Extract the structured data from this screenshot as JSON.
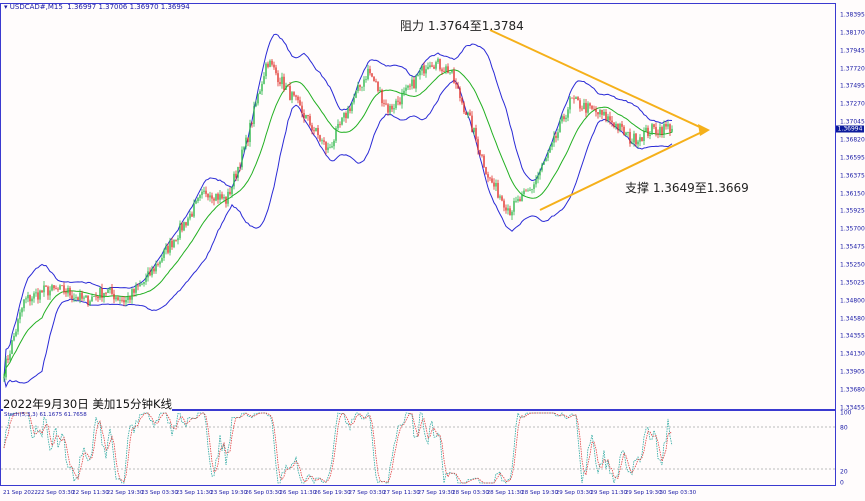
{
  "header": {
    "symbol": "USDCAD#,M15",
    "ohlc": "1.36997 1.37006 1.36970 1.36994"
  },
  "price_axis": [
    "1.38395",
    "1.38170",
    "1.37945",
    "1.37720",
    "1.37495",
    "1.37270",
    "1.37045",
    "1.36820",
    "1.36595",
    "1.36375",
    "1.36150",
    "1.35925",
    "1.35700",
    "1.35475",
    "1.35250",
    "1.35025",
    "1.34800",
    "1.34580",
    "1.34355",
    "1.34130",
    "1.33905",
    "1.33680",
    "1.33455"
  ],
  "current_price": "1.36994",
  "stoch_axis": [
    "100",
    "80",
    "20",
    "0"
  ],
  "stoch_label": "Stoch(5,3,3) 61.1675 61.7658",
  "time_axis": [
    "21 Sep 2022",
    "22 Sep 03:30",
    "22 Sep 11:30",
    "22 Sep 19:30",
    "23 Sep 03:30",
    "23 Sep 11:30",
    "23 Sep 19:30",
    "26 Sep 03:30",
    "26 Sep 11:30",
    "26 Sep 19:30",
    "27 Sep 03:30",
    "27 Sep 11:30",
    "27 Sep 19:30",
    "28 Sep 03:30",
    "28 Sep 11:30",
    "28 Sep 19:30",
    "29 Sep 03:30",
    "29 Sep 11:30",
    "29 Sep 19:30",
    "30 Sep 03:30"
  ],
  "annotations": {
    "resistance": "阻力 1.3764至1.3784",
    "support": "支撑 1.3649至1.3669",
    "caption": "2022年9月30日 美加15分钟K线"
  },
  "colors": {
    "bull": "#2db84a",
    "bear": "#e0302a",
    "bands": "#2a2ad6",
    "ma": "#22b022",
    "triangle": "#f5b01a",
    "axis": "#3a3ad0",
    "stoch_main": "#2aa8a0",
    "stoch_signal": "#e04040"
  },
  "chart_data": {
    "type": "candlestick",
    "price_path": [
      1.3392,
      1.348,
      1.3493,
      1.3493,
      1.348,
      1.3493,
      1.348,
      1.3506,
      1.3543,
      1.3581,
      1.3619,
      1.3606,
      1.3682,
      1.3783,
      1.3745,
      1.3707,
      1.3669,
      1.372,
      1.377,
      1.372,
      1.3745,
      1.3783,
      1.377,
      1.3707,
      1.3632,
      1.3594,
      1.3619,
      1.3669,
      1.3732,
      1.372,
      1.3707,
      1.3682,
      1.3695,
      1.3699
    ],
    "ylim": [
      1.33455,
      1.38395
    ]
  }
}
